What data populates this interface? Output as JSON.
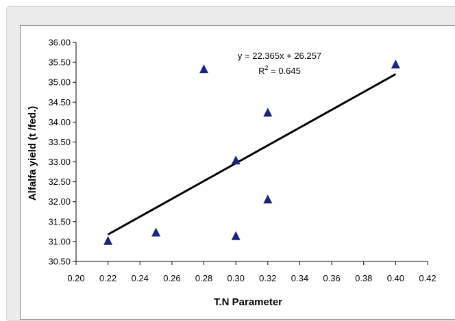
{
  "chart_data": {
    "type": "scatter",
    "title": "",
    "xlabel": "T.N Parameter",
    "ylabel": "Alfalfa yield (t /fed.)",
    "xlim": [
      0.2,
      0.42
    ],
    "ylim": [
      30.5,
      36.0
    ],
    "x_ticks": [
      "0.20",
      "0.22",
      "0.24",
      "0.26",
      "0.28",
      "0.30",
      "0.32",
      "0.34",
      "0.36",
      "0.38",
      "0.40",
      "0.42"
    ],
    "y_ticks": [
      "30.50",
      "31.00",
      "31.50",
      "32.00",
      "32.50",
      "33.00",
      "33.50",
      "34.00",
      "34.50",
      "35.00",
      "35.50",
      "36.00"
    ],
    "grid": false,
    "points": [
      {
        "x": 0.22,
        "y": 31.02
      },
      {
        "x": 0.25,
        "y": 31.23
      },
      {
        "x": 0.28,
        "y": 35.33
      },
      {
        "x": 0.3,
        "y": 33.04
      },
      {
        "x": 0.3,
        "y": 31.14
      },
      {
        "x": 0.32,
        "y": 34.24
      },
      {
        "x": 0.32,
        "y": 32.06
      },
      {
        "x": 0.4,
        "y": 35.45
      }
    ],
    "trendline": {
      "slope": 22.365,
      "intercept": 26.257,
      "x_start": 0.22,
      "x_end": 0.4
    },
    "equation_text": "y = 22.365x + 26.257",
    "r2_label": "R",
    "r2_sup": "2",
    "r2_value": " = 0.645",
    "marker_color": "#1a237e",
    "line_color": "#000000"
  }
}
